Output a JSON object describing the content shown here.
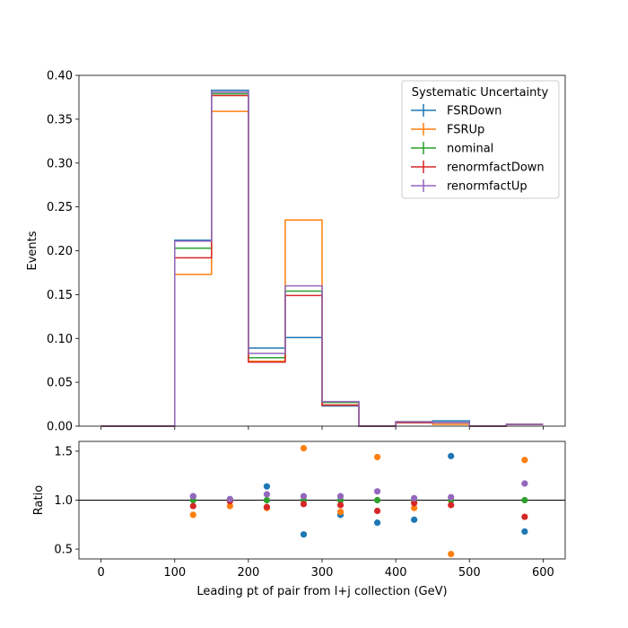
{
  "chart_data": [
    {
      "type": "step",
      "xlabel": "",
      "ylabel": "Events",
      "xlim": [
        -30,
        630
      ],
      "ylim": [
        0,
        0.4
      ],
      "xticks": [
        0,
        100,
        200,
        300,
        400,
        500,
        600
      ],
      "yticks": [
        0.0,
        0.05,
        0.1,
        0.15,
        0.2,
        0.25,
        0.3,
        0.35,
        0.4
      ],
      "ytick_labels": [
        "0.00",
        "0.05",
        "0.10",
        "0.15",
        "0.20",
        "0.25",
        "0.30",
        "0.35",
        "0.40"
      ],
      "bin_edges": [
        0,
        50,
        100,
        150,
        200,
        250,
        300,
        350,
        400,
        450,
        500,
        550,
        600
      ],
      "legend": {
        "title": "Systematic Uncertainty",
        "placement": "top-right"
      },
      "series": [
        {
          "name": "FSRDown",
          "color": "#1f77b4",
          "values": [
            0,
            0,
            0.212,
            0.383,
            0.089,
            0.101,
            0.023,
            0,
            0.004,
            0.006,
            0,
            0.002
          ]
        },
        {
          "name": "FSRUp",
          "color": "#ff7f0e",
          "values": [
            0,
            0,
            0.173,
            0.359,
            0.074,
            0.235,
            0.024,
            0,
            0.005,
            0.002,
            0,
            0.002
          ]
        },
        {
          "name": "nominal",
          "color": "#2ca02c",
          "values": [
            0,
            0,
            0.203,
            0.379,
            0.078,
            0.154,
            0.027,
            0,
            0.005,
            0.004,
            0,
            0.002
          ]
        },
        {
          "name": "renormfactDown",
          "color": "#d62728",
          "values": [
            0,
            0,
            0.192,
            0.377,
            0.073,
            0.149,
            0.024,
            0,
            0.004,
            0.004,
            0,
            0.002
          ]
        },
        {
          "name": "renormfactUp",
          "color": "#9467bd",
          "values": [
            0,
            0,
            0.211,
            0.381,
            0.083,
            0.16,
            0.028,
            0,
            0.005,
            0.004,
            0,
            0.002
          ]
        }
      ]
    },
    {
      "type": "scatter",
      "xlabel": "Leading pt of pair from l+j collection (GeV)",
      "ylabel": "Ratio",
      "xlim": [
        -30,
        630
      ],
      "ylim": [
        0.4,
        1.6
      ],
      "xticks": [
        0,
        100,
        200,
        300,
        400,
        500,
        600
      ],
      "yticks": [
        0.5,
        1.0,
        1.5
      ],
      "ytick_labels": [
        "0.5",
        "1.0",
        "1.5"
      ],
      "reference_line": 1.0,
      "series": [
        {
          "name": "FSRDown",
          "color": "#1f77b4",
          "x": [
            125,
            175,
            225,
            275,
            325,
            375,
            425,
            475,
            575
          ],
          "y": [
            1.04,
            1.01,
            1.14,
            0.65,
            0.85,
            0.77,
            0.8,
            1.45,
            0.68
          ]
        },
        {
          "name": "FSRUp",
          "color": "#ff7f0e",
          "x": [
            125,
            175,
            225,
            275,
            325,
            375,
            425,
            475,
            575
          ],
          "y": [
            0.85,
            0.94,
            0.92,
            1.53,
            0.88,
            1.44,
            0.92,
            0.45,
            1.41
          ]
        },
        {
          "name": "nominal",
          "color": "#2ca02c",
          "x": [
            125,
            175,
            225,
            275,
            325,
            375,
            425,
            475,
            575
          ],
          "y": [
            1.0,
            1.0,
            1.0,
            1.0,
            1.0,
            1.0,
            1.0,
            1.0,
            1.0
          ]
        },
        {
          "name": "renormfactDown",
          "color": "#d62728",
          "x": [
            125,
            175,
            225,
            275,
            325,
            375,
            425,
            475,
            575
          ],
          "y": [
            0.94,
            0.99,
            0.93,
            0.96,
            0.95,
            0.89,
            0.97,
            0.95,
            0.83
          ]
        },
        {
          "name": "renormfactUp",
          "color": "#9467bd",
          "x": [
            125,
            175,
            225,
            275,
            325,
            375,
            425,
            475,
            575
          ],
          "y": [
            1.04,
            1.01,
            1.06,
            1.04,
            1.04,
            1.09,
            1.02,
            1.03,
            1.17
          ]
        }
      ]
    }
  ]
}
